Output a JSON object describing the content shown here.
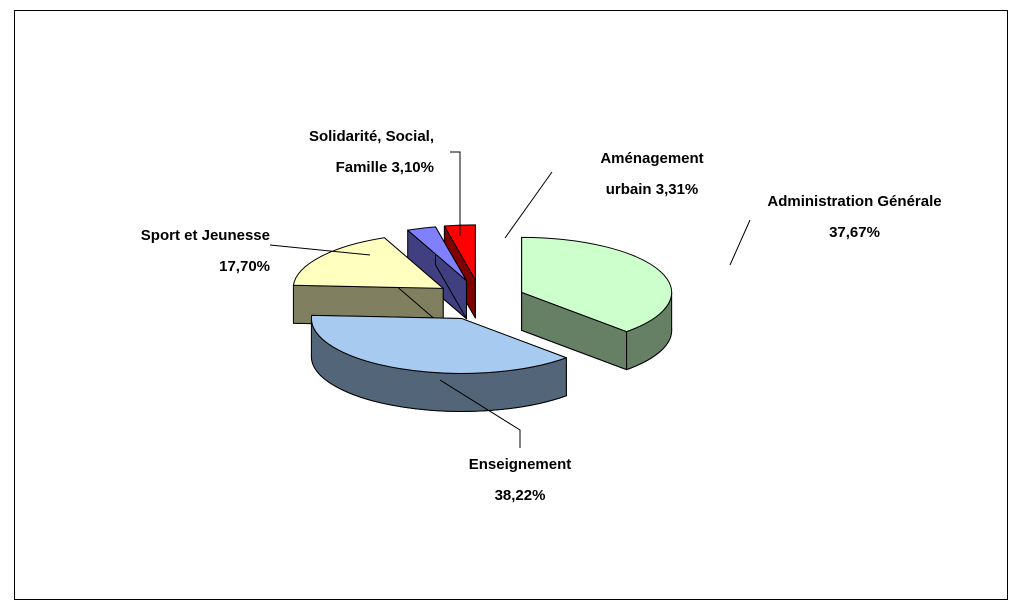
{
  "chart_data": {
    "type": "pie3d",
    "categories": [
      "Administration Générale",
      "Enseignement",
      "Sport et Jeunesse",
      "Solidarité, Social, Famille",
      "Aménagement urbain"
    ],
    "values": [
      37.67,
      38.22,
      17.7,
      3.1,
      3.31
    ],
    "value_labels": [
      "37,67%",
      "38,22%",
      "17,70%",
      "3,10%",
      "3,31%"
    ],
    "colors": [
      "#ccffcc",
      "#a6caf0",
      "#ffffc0",
      "#8080ff",
      "#ff0000"
    ]
  }
}
